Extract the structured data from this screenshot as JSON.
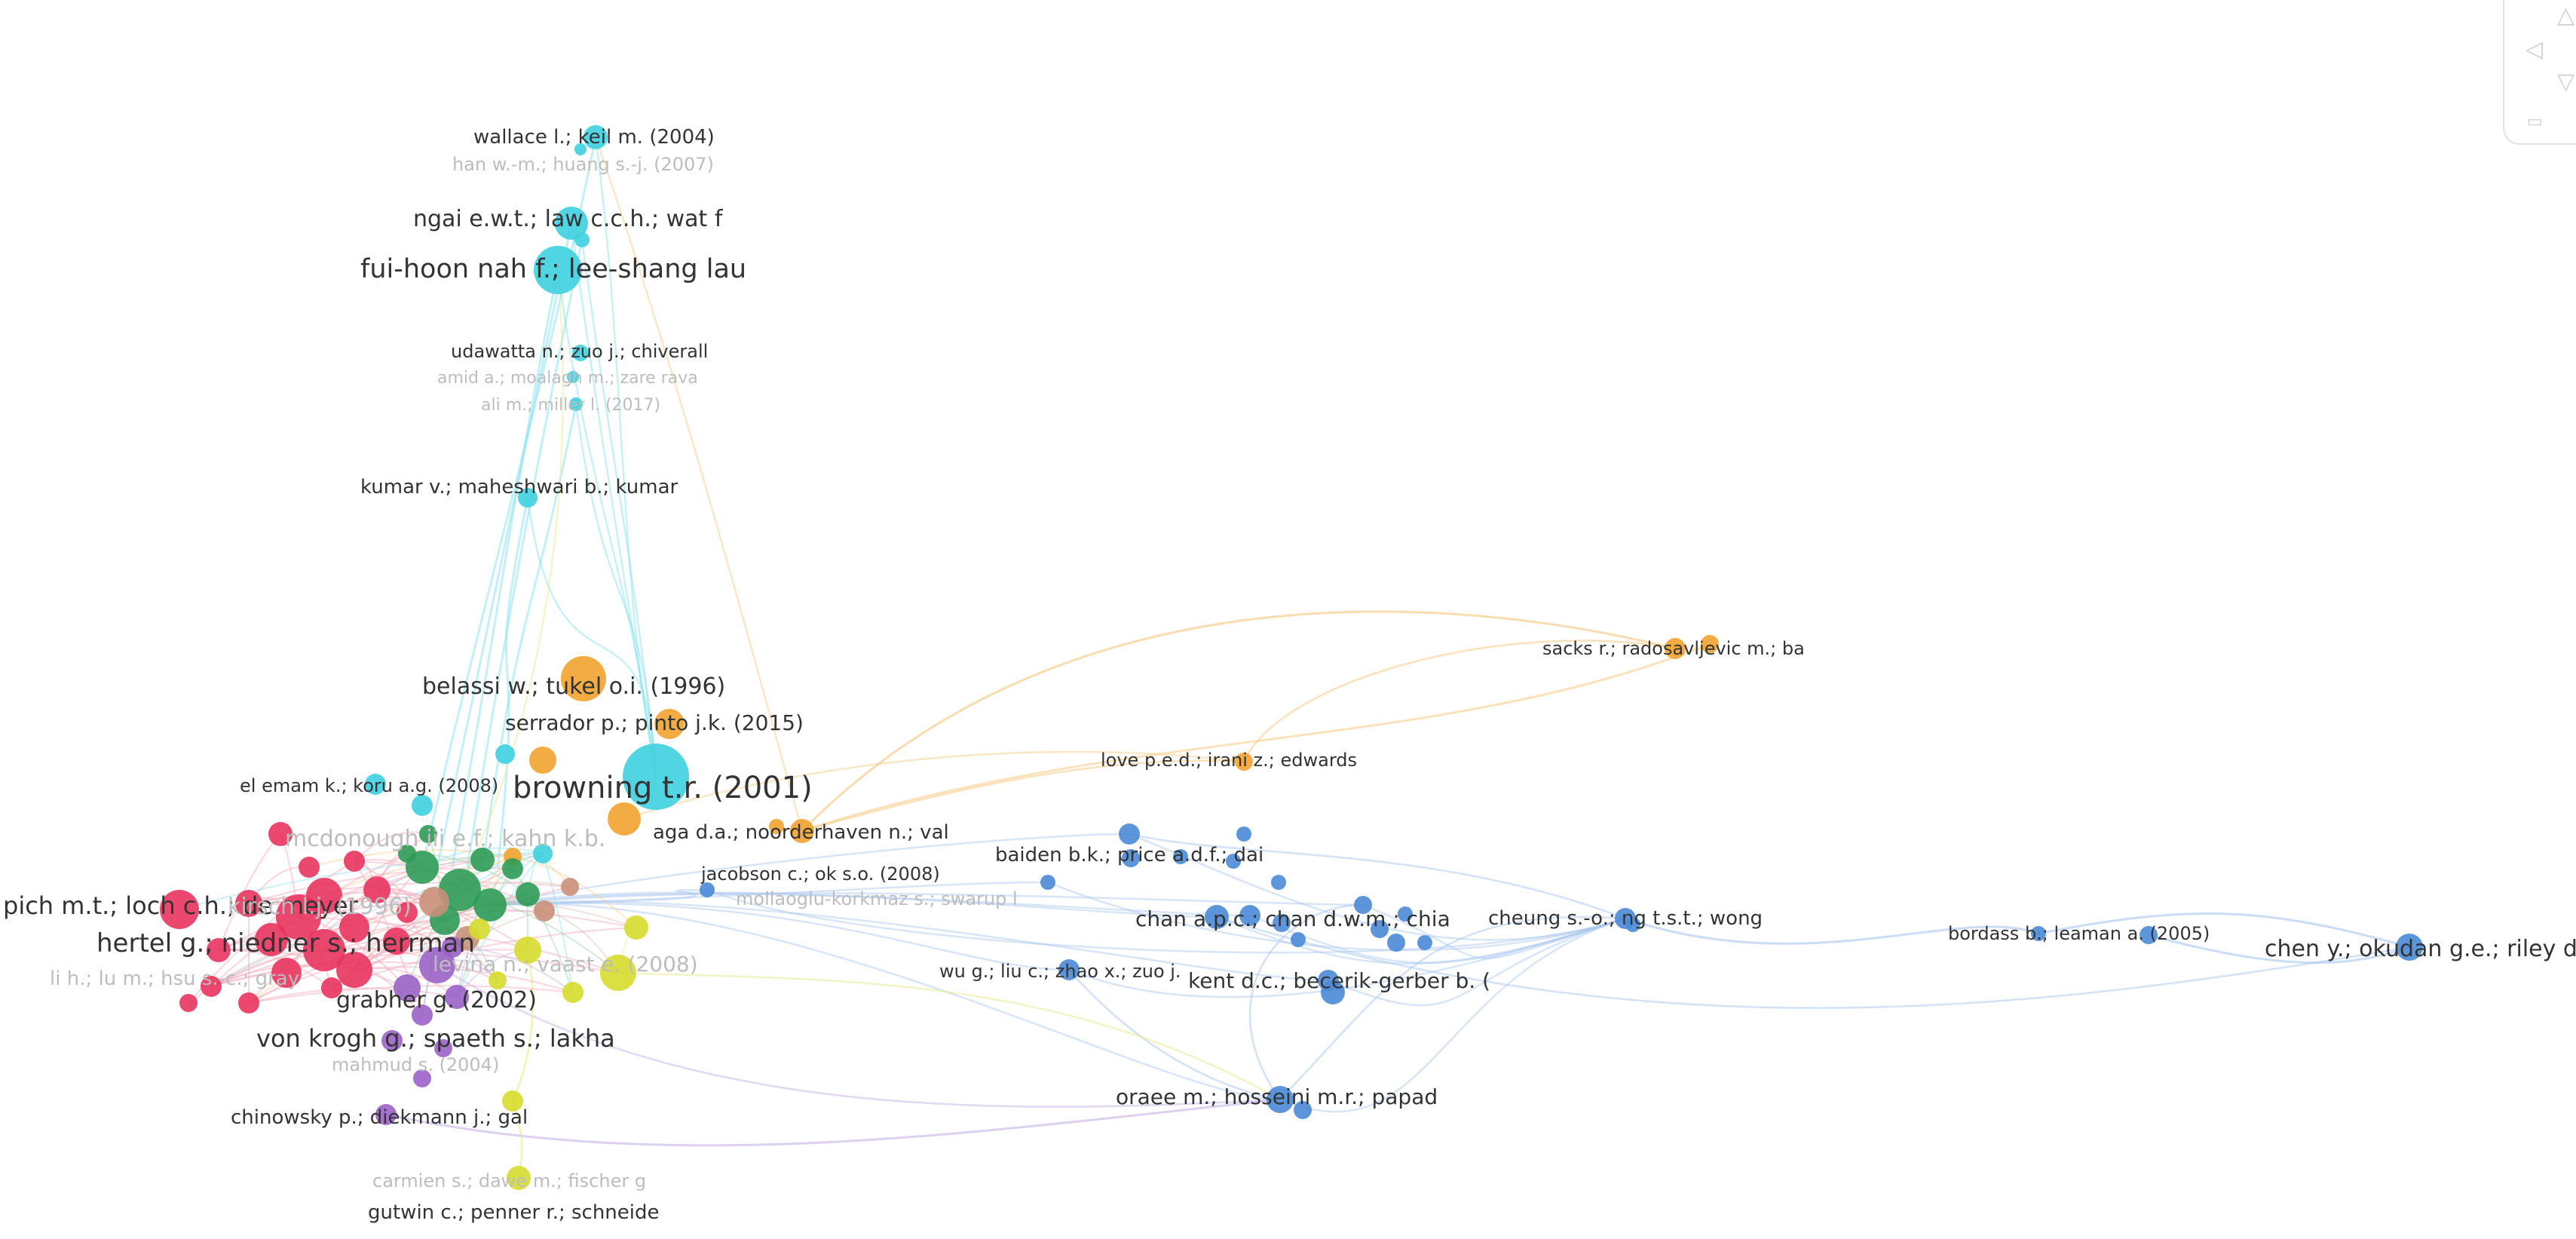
{
  "colors": {
    "cyan": "#3fd0e0",
    "orange": "#f2a32f",
    "red": "#e8345e",
    "green": "#2e9b57",
    "purple": "#9a63c7",
    "yellow": "#d6dc2e",
    "blue": "#4a8ad6",
    "tan": "#c9907a",
    "edge_blue": "#a9c6ee",
    "edge_cyan": "#8fe3ee",
    "edge_orange": "#f6cf8e",
    "edge_yellow": "#e9ec9d",
    "edge_purple": "#c7b2e5"
  },
  "labels": [
    {
      "text": "wallace l.; keil m. (2004)",
      "color": "cyan",
      "faint": false
    },
    {
      "text": "han w.-m.; huang s.-j. (2007)",
      "color": "cyan",
      "faint": true
    },
    {
      "text": "ngai e.w.t.; law c.c.h.; wat f",
      "color": "cyan",
      "faint": false
    },
    {
      "text": "fui-hoon nah f.; lee-shang lau",
      "color": "cyan",
      "faint": false
    },
    {
      "text": "udawatta n.; zuo j.; chiverall",
      "color": "cyan",
      "faint": false
    },
    {
      "text": "amid a.; moalagh m.; zare rava",
      "color": "cyan",
      "faint": true
    },
    {
      "text": "ali m.; miller l. (2017)",
      "color": "cyan",
      "faint": true
    },
    {
      "text": "kumar v.; maheshwari b.; kumar",
      "color": "cyan",
      "faint": false
    },
    {
      "text": "belassi w.; tukel o.i. (1996)",
      "color": "orange",
      "faint": false
    },
    {
      "text": "serrador p.; pinto j.k. (2015)",
      "color": "orange",
      "faint": false
    },
    {
      "text": "browning t.r. (2001)",
      "color": "cyan",
      "faint": false
    },
    {
      "text": "el emam k.; koru a.g. (2008)",
      "color": "cyan",
      "faint": false
    },
    {
      "text": "aga d.a.; noorderhaven n.; val",
      "color": "orange",
      "faint": false
    },
    {
      "text": "pich m.t.; loch c.h.; de meyer",
      "color": "red",
      "faint": false
    },
    {
      "text": "mcdonough iii e.f.; kahn k.b.",
      "color": "green",
      "faint": true
    },
    {
      "text": "kirsch l.j. (1996)",
      "color": "red",
      "faint": true
    },
    {
      "text": "hertel g.; niedner s.; herrman",
      "color": "red",
      "faint": false
    },
    {
      "text": "levina n.; vaast e. (2008)",
      "color": "yellow",
      "faint": true
    },
    {
      "text": "li h.; lu m.; hsu s.-c.; gray",
      "color": "red",
      "faint": true
    },
    {
      "text": "grabher g. (2002)",
      "color": "purple",
      "faint": false
    },
    {
      "text": "von krogh g.; spaeth s.; lakha",
      "color": "purple",
      "faint": false
    },
    {
      "text": "mahmud s. (2004)",
      "color": "purple",
      "faint": true
    },
    {
      "text": "chinowsky p.; diekmann j.; gal",
      "color": "purple",
      "faint": false
    },
    {
      "text": "carmien s.; dawe m.; fischer g",
      "color": "yellow",
      "faint": true
    },
    {
      "text": "gutwin c.; penner r.; schneide",
      "color": "yellow",
      "faint": false
    },
    {
      "text": "jacobson c.; ok s.o. (2008)",
      "color": "blue",
      "faint": false
    },
    {
      "text": "mollaoglu-korkmaz s.; swarup l",
      "color": "blue",
      "faint": true
    },
    {
      "text": "baiden b.k.; price a.d.f.; dai",
      "color": "blue",
      "faint": false
    },
    {
      "text": "love p.e.d.; irani z.; edwards",
      "color": "orange",
      "faint": false
    },
    {
      "text": "sacks r.; radosavljevic m.; ba",
      "color": "orange",
      "faint": false
    },
    {
      "text": "chan a.p.c.; chan d.w.m.; chia",
      "color": "blue",
      "faint": false
    },
    {
      "text": "wu g.; liu c.; zhao x.; zuo j.",
      "color": "blue",
      "faint": false
    },
    {
      "text": "kent d.c.; becerik-gerber b. (",
      "color": "blue",
      "faint": false
    },
    {
      "text": "cheung s.-o.; ng t.s.t.; wong",
      "color": "blue",
      "faint": false
    },
    {
      "text": "bordass b.; leaman a. (2005)",
      "color": "blue",
      "faint": false
    },
    {
      "text": "chen y.; okudan g.e.; riley d.",
      "color": "blue",
      "faint": false
    },
    {
      "text": "oraee m.; hosseini m.r.; papad",
      "color": "blue",
      "faint": false
    }
  ],
  "zoom_controls": [
    {
      "name": "zoom-in-icon",
      "glyph": "△"
    },
    {
      "name": "pan-left-icon",
      "glyph": "◁"
    },
    {
      "name": "zoom-out-icon",
      "glyph": "▽"
    },
    {
      "name": "reset-view-icon",
      "glyph": "▭"
    }
  ]
}
